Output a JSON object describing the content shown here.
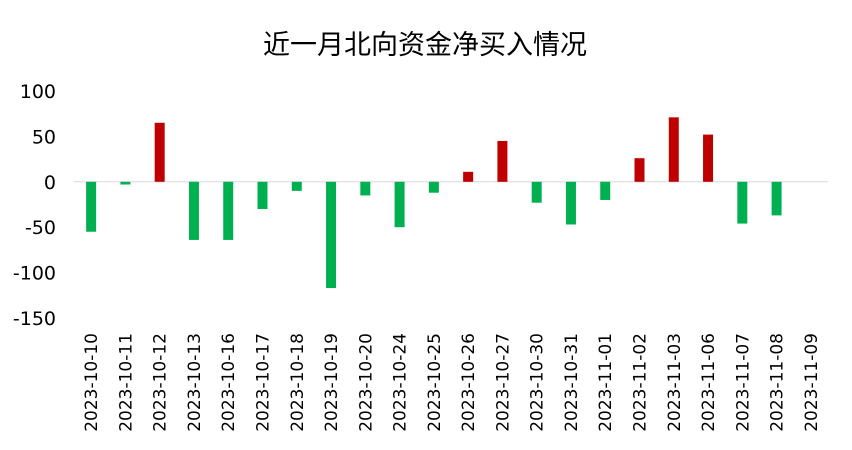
{
  "chart_data": {
    "type": "bar",
    "title": "近一月北向资金净买入情况",
    "xlabel": "",
    "ylabel": "",
    "ylim": [
      -150,
      100
    ],
    "yticks": [
      100,
      50,
      0,
      -50,
      -100,
      -150
    ],
    "grid": false,
    "colors": {
      "positive": "#c00000",
      "negative": "#00b050"
    },
    "categories": [
      "2023-10-10",
      "2023-10-11",
      "2023-10-12",
      "2023-10-13",
      "2023-10-16",
      "2023-10-17",
      "2023-10-18",
      "2023-10-19",
      "2023-10-20",
      "2023-10-24",
      "2023-10-25",
      "2023-10-26",
      "2023-10-27",
      "2023-10-30",
      "2023-10-31",
      "2023-11-01",
      "2023-11-02",
      "2023-11-03",
      "2023-11-06",
      "2023-11-07",
      "2023-11-08",
      "2023-11-09"
    ],
    "values": [
      -55,
      -3,
      65,
      -64,
      -64,
      -30,
      -10,
      -117,
      -15,
      -50,
      -12,
      11,
      45,
      -23,
      -47,
      -20,
      26,
      71,
      52,
      -46,
      -37,
      0
    ]
  }
}
